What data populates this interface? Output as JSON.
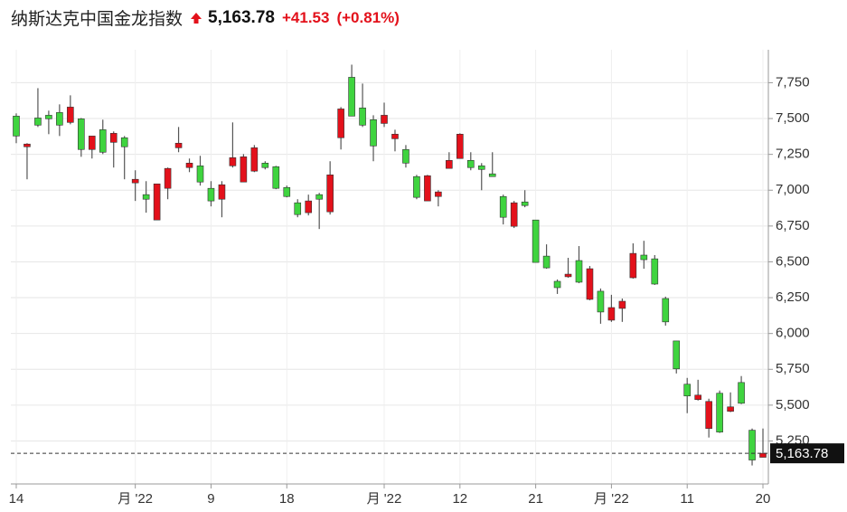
{
  "header": {
    "title": "纳斯达克中国金龙指数",
    "price": "5,163.78",
    "change": "+41.53",
    "change_pct": "(+0.81%)"
  },
  "chart_data": {
    "type": "candlestick",
    "categories": [
      "14",
      null,
      null,
      null,
      null,
      null,
      null,
      null,
      null,
      null,
      null,
      "月 '22",
      null,
      null,
      null,
      null,
      null,
      null,
      "9",
      null,
      null,
      null,
      null,
      null,
      null,
      "18",
      null,
      null,
      null,
      null,
      null,
      null,
      null,
      null,
      "月 '22",
      null,
      null,
      null,
      null,
      null,
      null,
      "12",
      null,
      null,
      null,
      null,
      null,
      null,
      "21",
      null,
      null,
      null,
      null,
      null,
      null,
      "月 '22",
      null,
      null,
      null,
      null,
      null,
      null,
      "11",
      null,
      null,
      null,
      null,
      null,
      null,
      "20"
    ],
    "open": [
      7517,
      7303,
      7504,
      7523,
      7542,
      7473,
      7498,
      7284,
      7422,
      7334,
      7366,
      7051,
      6969,
      6792,
      7013,
      7296,
      7158,
      7170,
      7013,
      6937,
      7170,
      7057,
      7133,
      7189,
      7164,
      7019,
      6912,
      6843,
      6969,
      6849,
      7366,
      7788,
      7574,
      7492,
      7466,
      7359,
      7284,
      7095,
      6925,
      6956,
      7152,
      7221,
      7208,
      7170,
      7114,
      6956,
      6748,
      6918,
      6792,
      6540,
      6364,
      6396,
      6509,
      6238,
      6295,
      6093,
      6175,
      6389,
      6547,
      6521,
      6244,
      5948,
      5646,
      5539,
      5337,
      5583,
      5457,
      5658,
      5325,
      5136
    ],
    "high": [
      7536,
      7328,
      7712,
      7555,
      7599,
      7662,
      7504,
      7378,
      7492,
      7410,
      7378,
      7139,
      7063,
      7044,
      7158,
      7441,
      7221,
      7240,
      7063,
      7063,
      7473,
      7252,
      7315,
      7202,
      7170,
      7032,
      6937,
      6969,
      6981,
      7202,
      7580,
      7876,
      7744,
      7523,
      7611,
      7422,
      7315,
      7107,
      7107,
      7000,
      7265,
      7397,
      7265,
      7189,
      7265,
      6969,
      6925,
      7000,
      6792,
      6622,
      6377,
      6528,
      6610,
      6471,
      6314,
      6270,
      6244,
      6629,
      6647,
      6547,
      6257,
      5948,
      5690,
      5677,
      5545,
      5602,
      5589,
      5703,
      5337,
      5337
    ],
    "low": [
      7328,
      7076,
      7441,
      7391,
      7378,
      7460,
      7233,
      7221,
      7252,
      7158,
      7076,
      6925,
      6843,
      6792,
      6937,
      7265,
      7126,
      7032,
      6887,
      6811,
      7158,
      7057,
      7126,
      7145,
      7007,
      6950,
      6811,
      6824,
      6729,
      6830,
      7284,
      7517,
      7441,
      7202,
      7441,
      7271,
      7158,
      6937,
      6925,
      6887,
      7152,
      7221,
      7139,
      7000,
      7095,
      6761,
      6736,
      6881,
      6496,
      6452,
      6276,
      6389,
      6351,
      6232,
      6068,
      6081,
      6081,
      6383,
      6452,
      6339,
      6055,
      5721,
      5444,
      5532,
      5274,
      5306,
      5451,
      5507,
      5079,
      5136
    ],
    "close": [
      7378,
      7322,
      7454,
      7498,
      7454,
      7580,
      7284,
      7378,
      7265,
      7397,
      7303,
      7076,
      6937,
      7044,
      7152,
      7328,
      7189,
      7057,
      6925,
      7038,
      7227,
      7233,
      7296,
      7158,
      7013,
      6956,
      6830,
      6925,
      6937,
      7107,
      7567,
      7517,
      7454,
      7309,
      7523,
      7391,
      7189,
      6950,
      7101,
      6988,
      7208,
      7391,
      7158,
      7145,
      7095,
      6811,
      6912,
      6893,
      6496,
      6458,
      6320,
      6414,
      6358,
      6452,
      6150,
      6181,
      6225,
      6559,
      6515,
      6345,
      6081,
      5753,
      5564,
      5570,
      5526,
      5312,
      5488,
      5513,
      5117,
      5163.78
    ],
    "up_color": "#e3111b",
    "down_color": "#3fd43f",
    "last": {
      "value": 5163.78,
      "label": "5,163.78"
    },
    "ylim": [
      4950,
      7980
    ],
    "yticks": [
      {
        "value": 5250,
        "label": "5,250"
      },
      {
        "value": 5500,
        "label": "5,500"
      },
      {
        "value": 5750,
        "label": "5,750"
      },
      {
        "value": 6000,
        "label": "6,000"
      },
      {
        "value": 6250,
        "label": "6,250"
      },
      {
        "value": 6500,
        "label": "6,500"
      },
      {
        "value": 6750,
        "label": "6,750"
      },
      {
        "value": 7000,
        "label": "7,000"
      },
      {
        "value": 7250,
        "label": "7,250"
      },
      {
        "value": 7500,
        "label": "7,500"
      },
      {
        "value": 7750,
        "label": "7,750"
      }
    ],
    "grid": true
  }
}
